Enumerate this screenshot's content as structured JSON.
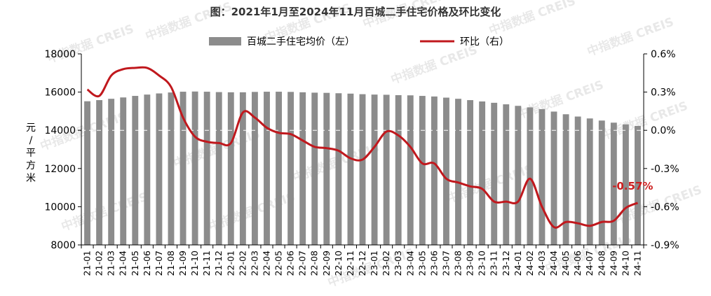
{
  "chart_data": {
    "type": "bar",
    "title": "图：2021年1月至2024年11月百城二手住宅价格及环比变化",
    "ylabel": "元/平方米",
    "ylim": [
      8000,
      18000
    ],
    "y_ticks": [
      "18000",
      "16000",
      "14000",
      "12000",
      "10000",
      "8000"
    ],
    "y2lim": [
      -0.9,
      0.6
    ],
    "y2_ticks": [
      "0.6%",
      "0.3%",
      "0.0%",
      "-0.3%",
      "-0.6%",
      "-0.9%"
    ],
    "legend_position": "top",
    "grid": false,
    "categories": [
      "21-01",
      "21-02",
      "21-03",
      "21-04",
      "21-05",
      "21-06",
      "21-07",
      "21-08",
      "21-09",
      "21-10",
      "21-11",
      "21-12",
      "22-01",
      "22-02",
      "22-03",
      "22-04",
      "22-05",
      "22-06",
      "22-07",
      "22-08",
      "22-09",
      "22-10",
      "22-11",
      "22-12",
      "23-01",
      "23-02",
      "23-03",
      "23-04",
      "23-05",
      "23-06",
      "23-07",
      "23-08",
      "23-09",
      "23-10",
      "23-11",
      "23-12",
      "24-01",
      "24-02",
      "24-03",
      "24-04",
      "24-05",
      "24-06",
      "24-07",
      "24-08",
      "24-09",
      "24-10",
      "24-11"
    ],
    "series": [
      {
        "name": "百城二手住宅均价（左）",
        "type": "bar",
        "axis": "left",
        "color": "#8c8c8c",
        "values": [
          15520,
          15580,
          15650,
          15720,
          15800,
          15870,
          15930,
          15980,
          16020,
          16030,
          16020,
          16000,
          15990,
          15990,
          16010,
          16020,
          16020,
          16010,
          15990,
          15970,
          15960,
          15940,
          15920,
          15890,
          15870,
          15860,
          15840,
          15830,
          15800,
          15770,
          15710,
          15650,
          15580,
          15510,
          15440,
          15360,
          15280,
          15200,
          15110,
          14980,
          14840,
          14720,
          14620,
          14510,
          14400,
          14310,
          14230
        ]
      },
      {
        "name": "环比（右）",
        "type": "line",
        "axis": "right",
        "color": "#c0181d",
        "values": [
          0.32,
          0.27,
          0.43,
          0.48,
          0.49,
          0.49,
          0.43,
          0.34,
          0.1,
          -0.05,
          -0.09,
          -0.1,
          -0.1,
          0.14,
          0.1,
          0.02,
          -0.02,
          -0.03,
          -0.08,
          -0.13,
          -0.14,
          -0.16,
          -0.22,
          -0.23,
          -0.13,
          -0.01,
          -0.04,
          -0.13,
          -0.26,
          -0.26,
          -0.38,
          -0.41,
          -0.44,
          -0.46,
          -0.56,
          -0.56,
          -0.56,
          -0.38,
          -0.6,
          -0.76,
          -0.72,
          -0.73,
          -0.75,
          -0.72,
          -0.71,
          -0.61,
          -0.57
        ]
      }
    ],
    "annotations": [
      {
        "text": "-0.57%",
        "target": "环比（右）",
        "index": 46
      }
    ],
    "watermark": "中指数据 CREIS"
  }
}
